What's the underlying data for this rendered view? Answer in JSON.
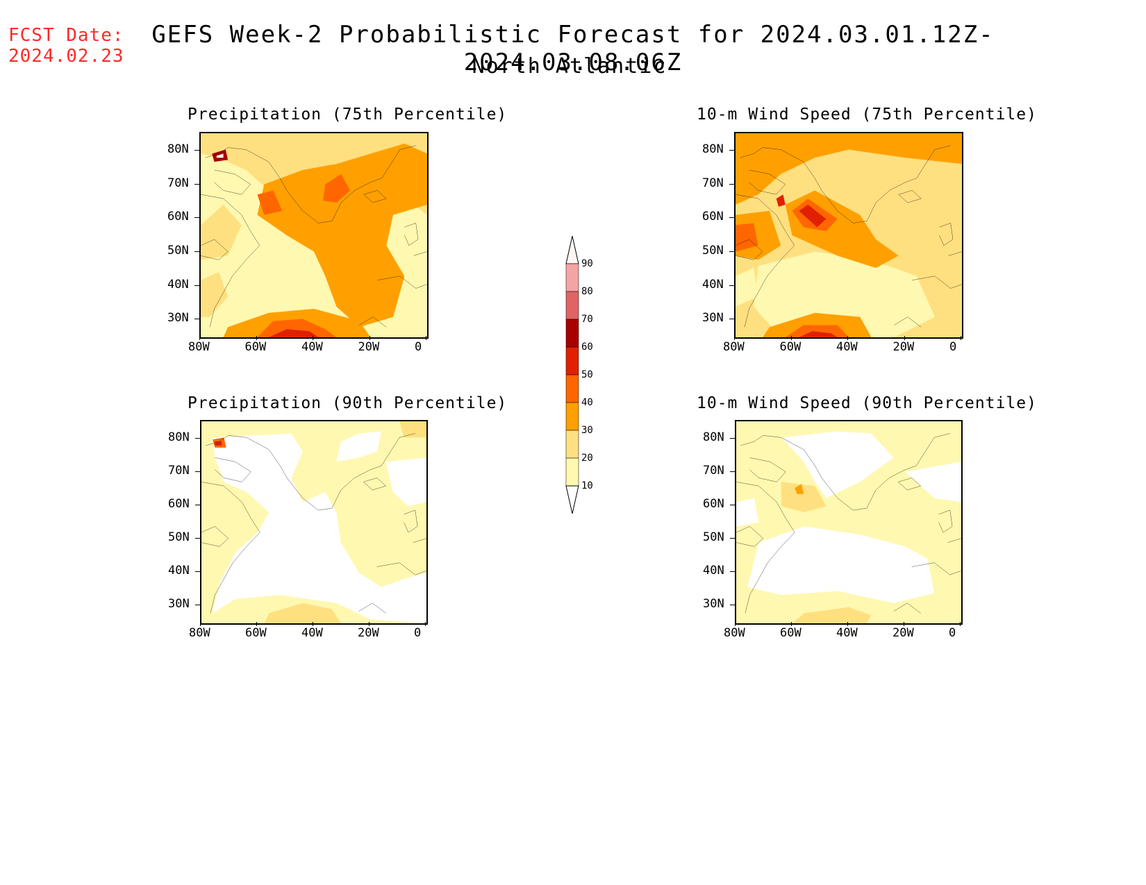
{
  "header": {
    "fcst_label": "FCST Date:",
    "fcst_date": "2024.02.23",
    "title": "GEFS Week-2 Probabilistic Forecast for 2024.03.01.12Z-2024.03.08.06Z",
    "subtitle": "North Atlantic"
  },
  "axes": {
    "lat_labels": [
      "80N",
      "70N",
      "60N",
      "50N",
      "40N",
      "30N"
    ],
    "lon_labels": [
      "80W",
      "60W",
      "40W",
      "20W",
      "0"
    ]
  },
  "panels": [
    {
      "title": "Precipitation (75th Percentile)"
    },
    {
      "title": "10-m Wind Speed (75th Percentile)"
    },
    {
      "title": "Precipitation (90th Percentile)"
    },
    {
      "title": "10-m Wind Speed (90th Percentile)"
    }
  ],
  "colorbar": {
    "labels": [
      "90",
      "80",
      "70",
      "60",
      "50",
      "40",
      "30",
      "20",
      "10"
    ],
    "colors": [
      "#fff5f5",
      "#f4a4a4",
      "#e06464",
      "#a80000",
      "#e02000",
      "#ff6600",
      "#ffa000",
      "#ffe080",
      "#fff8b0"
    ]
  },
  "palette": {
    "p10": "#fff8b0",
    "p20": "#ffe080",
    "p30": "#ffa000",
    "p40": "#ff6600",
    "p50": "#e02000",
    "p60": "#a80000",
    "p80": "#f4a4a4",
    "p90": "#fff5f5",
    "title_red": "#ff2a2a"
  }
}
